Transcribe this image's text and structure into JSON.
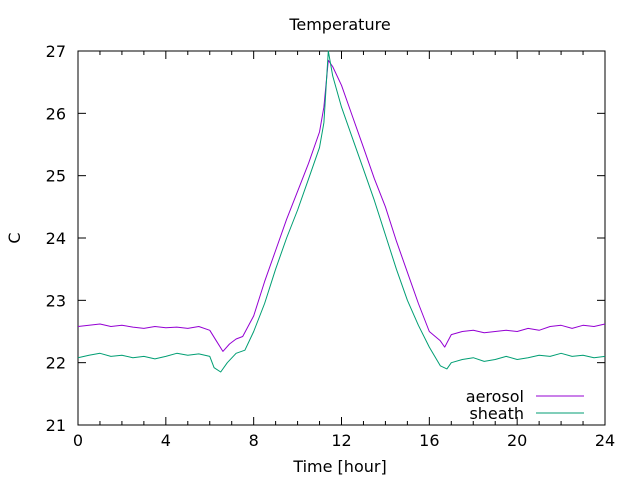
{
  "chart_data": {
    "type": "line",
    "title": "Temperature",
    "xlabel": "Time [hour]",
    "ylabel": "C",
    "xlim": [
      0,
      24
    ],
    "ylim": [
      21,
      27
    ],
    "xticks": [
      0,
      4,
      8,
      12,
      16,
      20,
      24
    ],
    "yticks": [
      21,
      22,
      23,
      24,
      25,
      26,
      27
    ],
    "grid": false,
    "legend_position": "bottom-right",
    "series": [
      {
        "name": "aerosol",
        "color": "#9400d3",
        "x": [
          0,
          0.5,
          1,
          1.5,
          2,
          2.5,
          3,
          3.5,
          4,
          4.5,
          5,
          5.5,
          6,
          6.3,
          6.6,
          6.9,
          7.2,
          7.5,
          8,
          8.5,
          9,
          9.5,
          10,
          10.5,
          11,
          11.2,
          11.4,
          11.6,
          12,
          12.5,
          13,
          13.5,
          14,
          14.5,
          15,
          15.5,
          16,
          16.5,
          16.7,
          17,
          17.5,
          18,
          18.5,
          19,
          19.5,
          20,
          20.5,
          21,
          21.5,
          22,
          22.5,
          23,
          23.5,
          24
        ],
        "y": [
          22.58,
          22.6,
          22.62,
          22.58,
          22.6,
          22.57,
          22.55,
          22.58,
          22.56,
          22.57,
          22.55,
          22.58,
          22.52,
          22.35,
          22.18,
          22.3,
          22.38,
          22.42,
          22.75,
          23.3,
          23.8,
          24.3,
          24.75,
          25.2,
          25.7,
          26.1,
          26.85,
          26.75,
          26.45,
          25.95,
          25.45,
          24.95,
          24.5,
          23.95,
          23.45,
          22.95,
          22.5,
          22.35,
          22.25,
          22.45,
          22.5,
          22.52,
          22.48,
          22.5,
          22.52,
          22.5,
          22.55,
          22.52,
          22.58,
          22.6,
          22.55,
          22.6,
          22.58,
          22.62
        ]
      },
      {
        "name": "sheath",
        "color": "#009e73",
        "x": [
          0,
          0.5,
          1,
          1.5,
          2,
          2.5,
          3,
          3.5,
          4,
          4.5,
          5,
          5.5,
          6,
          6.2,
          6.5,
          6.8,
          7.2,
          7.6,
          8,
          8.5,
          9,
          9.5,
          10,
          10.5,
          11,
          11.2,
          11.4,
          11.6,
          12,
          12.5,
          13,
          13.5,
          14,
          14.5,
          15,
          15.5,
          16,
          16.5,
          16.8,
          17,
          17.5,
          18,
          18.5,
          19,
          19.5,
          20,
          20.5,
          21,
          21.5,
          22,
          22.5,
          23,
          23.5,
          24
        ],
        "y": [
          22.08,
          22.12,
          22.15,
          22.1,
          22.12,
          22.08,
          22.1,
          22.06,
          22.1,
          22.15,
          22.12,
          22.14,
          22.1,
          21.92,
          21.85,
          22.0,
          22.15,
          22.2,
          22.5,
          22.95,
          23.5,
          24.0,
          24.45,
          24.95,
          25.45,
          25.85,
          27.0,
          26.6,
          26.1,
          25.6,
          25.1,
          24.6,
          24.05,
          23.5,
          23.0,
          22.6,
          22.25,
          21.95,
          21.9,
          22.0,
          22.05,
          22.08,
          22.02,
          22.05,
          22.1,
          22.05,
          22.08,
          22.12,
          22.1,
          22.15,
          22.1,
          22.12,
          22.08,
          22.1
        ]
      }
    ]
  }
}
